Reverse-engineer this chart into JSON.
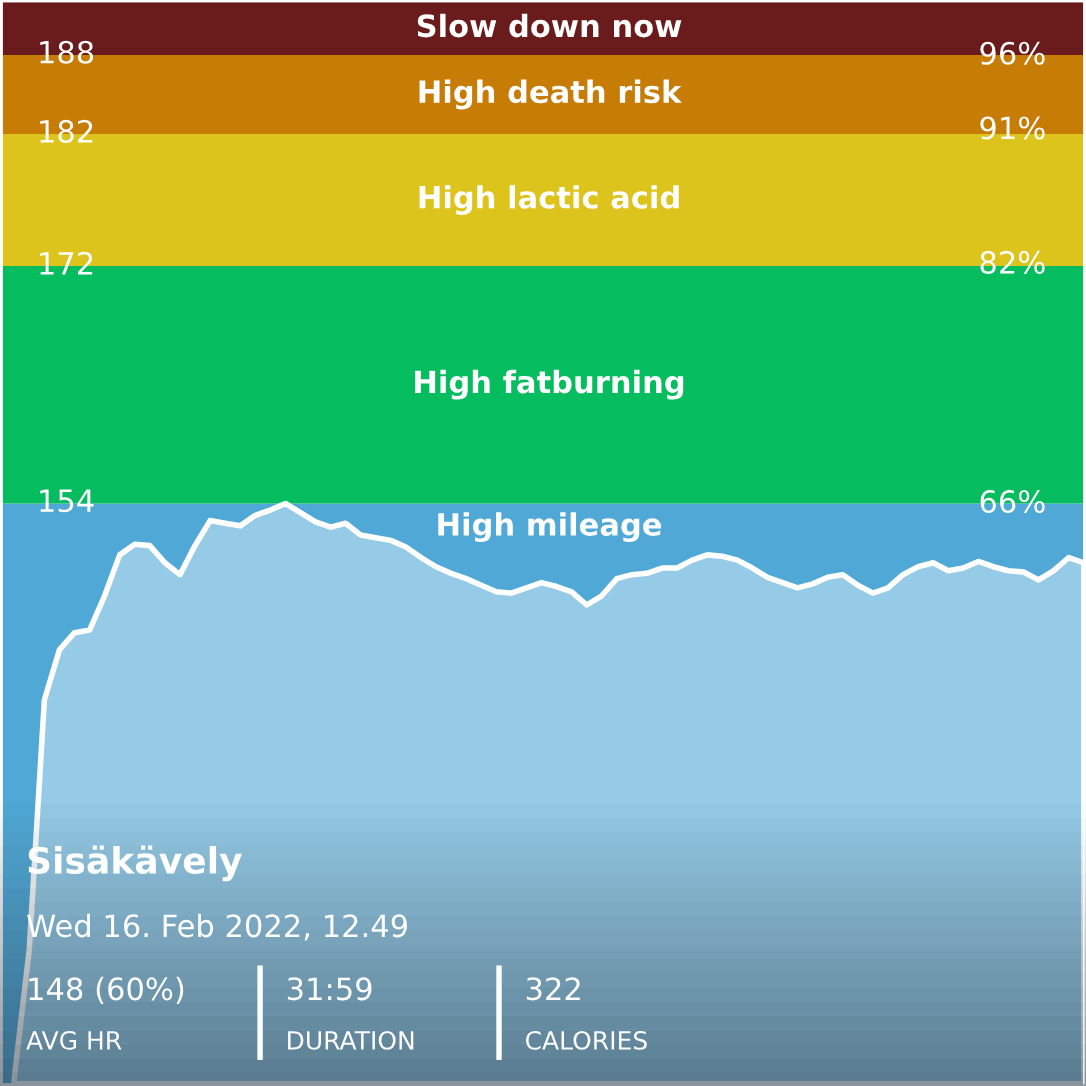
{
  "chart_data": {
    "type": "area",
    "categories": [
      null,
      null,
      null,
      null,
      null,
      null,
      null,
      null,
      null,
      null,
      null,
      null,
      null,
      null,
      null,
      null,
      null,
      null,
      null,
      null,
      null,
      null,
      null,
      null,
      null,
      null,
      null,
      null,
      null,
      null,
      null,
      null,
      null,
      null,
      null,
      null,
      null,
      null,
      null,
      null,
      null,
      null,
      null,
      null,
      null,
      null,
      null,
      null,
      null,
      null,
      null,
      null,
      null,
      null,
      null,
      null,
      null,
      null,
      null,
      null,
      null,
      null,
      null,
      null,
      null,
      null,
      null,
      null,
      null,
      null,
      null,
      null
    ],
    "series": [
      {
        "color": "#ffffff",
        "values": [
          110.4,
          120.2,
          139.1,
          142.9,
          144.2,
          144.4,
          147.0,
          150.1,
          150.9,
          150.8,
          149.5,
          148.6,
          150.8,
          152.7,
          152.5,
          152.3,
          153.1,
          153.5,
          154.0,
          153.3,
          152.6,
          152.2,
          152.5,
          151.6,
          151.4,
          151.2,
          150.7,
          149.9,
          149.2,
          148.7,
          148.3,
          147.8,
          147.3,
          147.2,
          147.6,
          148.0,
          147.7,
          147.3,
          146.3,
          147.0,
          148.3,
          148.6,
          148.7,
          149.1,
          149.1,
          149.7,
          150.1,
          150.0,
          149.7,
          149.1,
          148.4,
          148.0,
          147.6,
          147.9,
          148.4,
          148.6,
          147.8,
          147.2,
          147.6,
          148.6,
          149.2,
          149.5,
          148.9,
          149.1,
          149.6,
          149.2,
          148.9,
          148.8,
          148.2,
          148.9,
          149.9,
          149.5
        ]
      }
    ],
    "ylim": [
      110,
      192
    ],
    "yticks": [
      154,
      172,
      182,
      188
    ],
    "y2lim": [
      27.2,
      99.6
    ],
    "y2ticks": [
      {
        "value": 66,
        "label": "66%"
      },
      {
        "value": 82,
        "label": "82%"
      },
      {
        "value": 91,
        "label": "91%"
      },
      {
        "value": 96,
        "label": "96%"
      }
    ],
    "bands": [
      {
        "axis": "y",
        "from": 110,
        "to": 154,
        "label": "High mileage",
        "color": "#4fa8d5"
      },
      {
        "axis": "y",
        "from": 154,
        "to": 172,
        "label": "High fatburning",
        "color": "#05bd5f"
      },
      {
        "axis": "y",
        "from": 172,
        "to": 182,
        "label": "High lactic acid",
        "color": "#dcc41c"
      },
      {
        "axis": "y",
        "from": 182,
        "to": 188,
        "label": "High death risk",
        "color": "#c77c06"
      },
      {
        "axis": "y",
        "from": 188,
        "to": 192,
        "label": "Slow down now",
        "color": "#6a1c1c"
      }
    ],
    "annotations": [
      "Sisäkävely",
      "Wed 16. Feb 2022, 12.49",
      "148 (60%)",
      "AVG HR",
      "31:59",
      "DURATION",
      "322",
      "CALORIES"
    ],
    "grid": false,
    "legend": false
  }
}
